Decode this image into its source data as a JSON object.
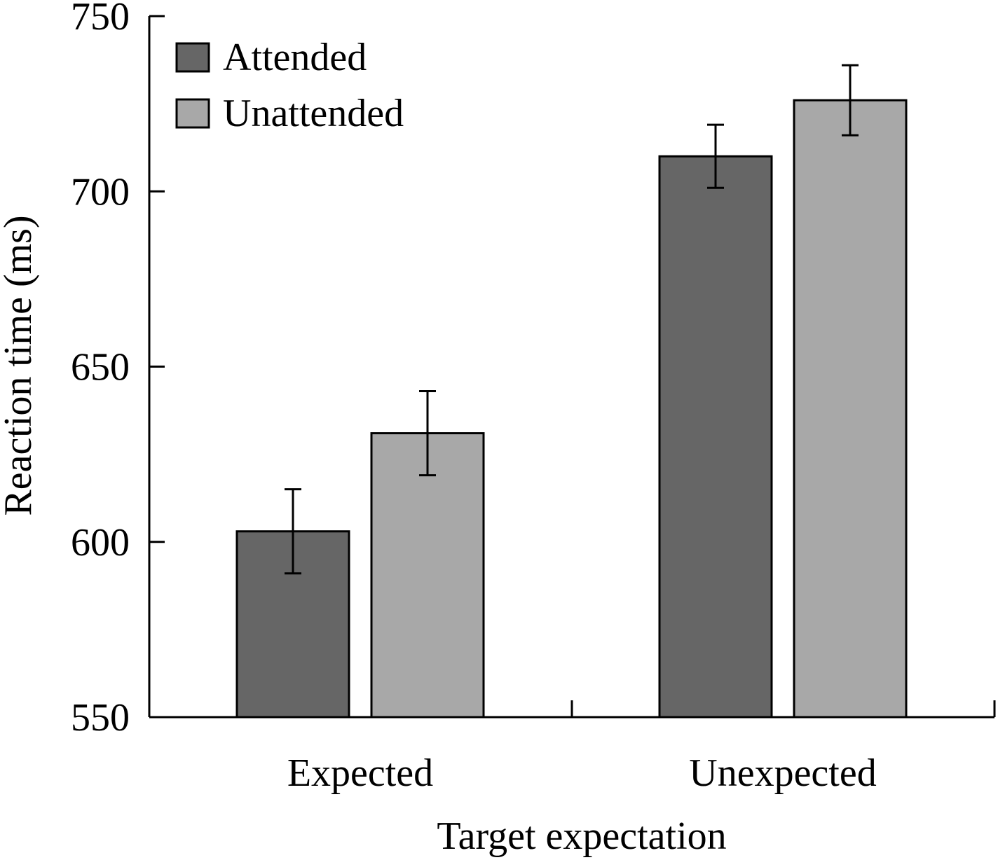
{
  "chart_data": {
    "type": "bar",
    "xlabel": "Target expectation",
    "ylabel": "Reaction time (ms)",
    "categories": [
      "Expected",
      "Unexpected"
    ],
    "ylim": [
      550,
      750
    ],
    "yticks": [
      550,
      600,
      650,
      700,
      750
    ],
    "ytick_labels": [
      "550",
      "600",
      "650",
      "700",
      "750"
    ],
    "grid": false,
    "legend_position": "top-left",
    "series": [
      {
        "name": "Attended",
        "color": "#666666",
        "values": [
          603,
          710
        ],
        "error": [
          12,
          9
        ]
      },
      {
        "name": "Unattended",
        "color": "#a8a8a8",
        "values": [
          631,
          726
        ],
        "error": [
          12,
          10
        ]
      }
    ]
  }
}
